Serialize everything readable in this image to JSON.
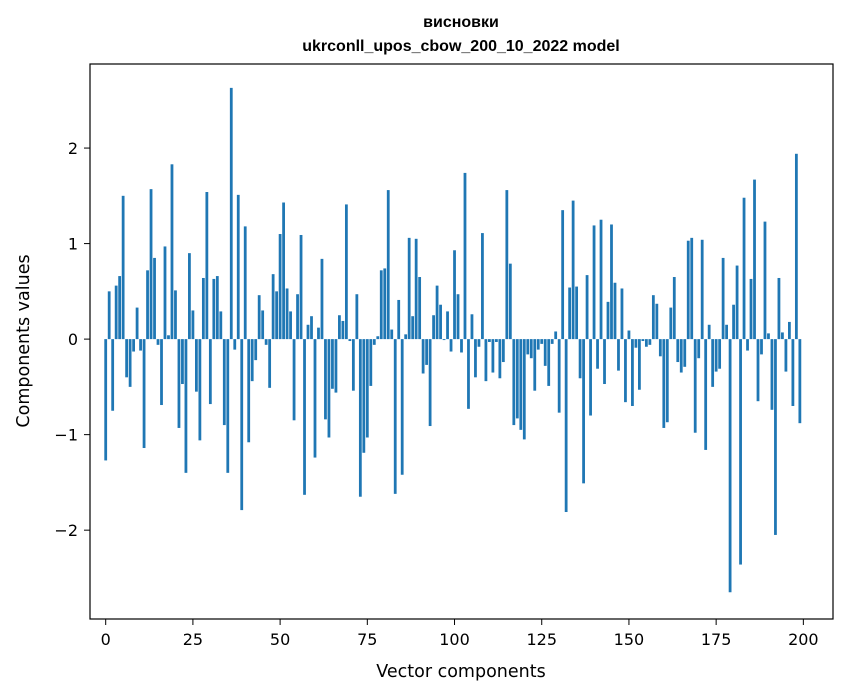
{
  "chart_data": {
    "type": "bar",
    "title": "висновки",
    "subtitle": "ukrconll_upos_cbow_200_10_2022 model",
    "xlabel": "Vector components",
    "ylabel": "Components values",
    "xlim": [
      -4.5,
      208.5
    ],
    "ylim": [
      -2.93,
      2.88
    ],
    "xticks": [
      0,
      25,
      50,
      75,
      100,
      125,
      150,
      175,
      200
    ],
    "xtick_labels": [
      "0",
      "25",
      "50",
      "75",
      "100",
      "125",
      "150",
      "175",
      "200"
    ],
    "yticks": [
      -2,
      -1,
      0,
      1,
      2
    ],
    "ytick_labels": [
      "−2",
      "−1",
      "0",
      "1",
      "2"
    ],
    "grid": false,
    "color": "#1f77b4",
    "values": [
      -1.27,
      0.5,
      -0.75,
      0.56,
      0.66,
      1.5,
      -0.4,
      -0.5,
      -0.13,
      0.33,
      -0.12,
      -1.14,
      0.72,
      1.57,
      0.85,
      -0.06,
      -0.69,
      0.97,
      0.04,
      1.83,
      0.51,
      -0.93,
      -0.47,
      -1.4,
      0.9,
      0.3,
      -0.55,
      -1.06,
      0.64,
      1.54,
      -0.68,
      0.63,
      0.66,
      0.29,
      -0.9,
      -1.4,
      2.63,
      -0.11,
      1.51,
      -1.79,
      1.18,
      -1.08,
      -0.44,
      -0.22,
      0.46,
      0.3,
      -0.06,
      -0.51,
      0.68,
      0.5,
      1.1,
      1.43,
      0.53,
      0.29,
      -0.85,
      0.47,
      1.09,
      -1.63,
      0.15,
      0.24,
      -1.24,
      0.12,
      0.84,
      -0.84,
      -1.03,
      -0.52,
      -0.56,
      0.25,
      0.19,
      1.41,
      -0.02,
      -0.54,
      0.47,
      -1.65,
      -1.19,
      -1.03,
      -0.49,
      -0.06,
      0.03,
      0.72,
      0.74,
      1.56,
      0.1,
      -1.62,
      0.41,
      -1.42,
      0.05,
      1.06,
      0.24,
      1.05,
      0.65,
      -0.36,
      -0.27,
      -0.91,
      0.25,
      0.56,
      0.36,
      -0.01,
      0.29,
      -0.13,
      0.93,
      0.47,
      -0.14,
      1.74,
      -0.73,
      0.26,
      -0.4,
      -0.08,
      1.11,
      -0.44,
      -0.03,
      -0.35,
      -0.03,
      -0.41,
      -0.24,
      1.56,
      0.79,
      -0.9,
      -0.83,
      -0.95,
      -1.05,
      -0.16,
      -0.2,
      -0.54,
      -0.11,
      -0.05,
      -0.28,
      -0.49,
      -0.05,
      0.08,
      -0.77,
      1.35,
      -1.81,
      0.54,
      1.45,
      0.55,
      -0.41,
      -1.51,
      0.67,
      -0.8,
      1.19,
      -0.31,
      1.25,
      -0.47,
      0.39,
      1.2,
      0.59,
      -0.33,
      0.53,
      -0.66,
      0.09,
      -0.7,
      -0.09,
      -0.53,
      -0.02,
      -0.08,
      -0.06,
      0.46,
      0.37,
      -0.18,
      -0.93,
      -0.87,
      0.33,
      0.65,
      -0.24,
      -0.35,
      -0.29,
      1.03,
      1.06,
      -0.98,
      -0.2,
      1.04,
      -1.16,
      0.15,
      -0.5,
      -0.34,
      -0.31,
      0.85,
      0.15,
      -2.65,
      0.36,
      0.77,
      -2.36,
      1.48,
      -0.12,
      0.63,
      1.67,
      -0.65,
      -0.16,
      1.23,
      0.06,
      -0.74,
      -2.05,
      0.64,
      0.07,
      -0.34,
      0.18,
      -0.7,
      1.94,
      -0.88
    ]
  }
}
